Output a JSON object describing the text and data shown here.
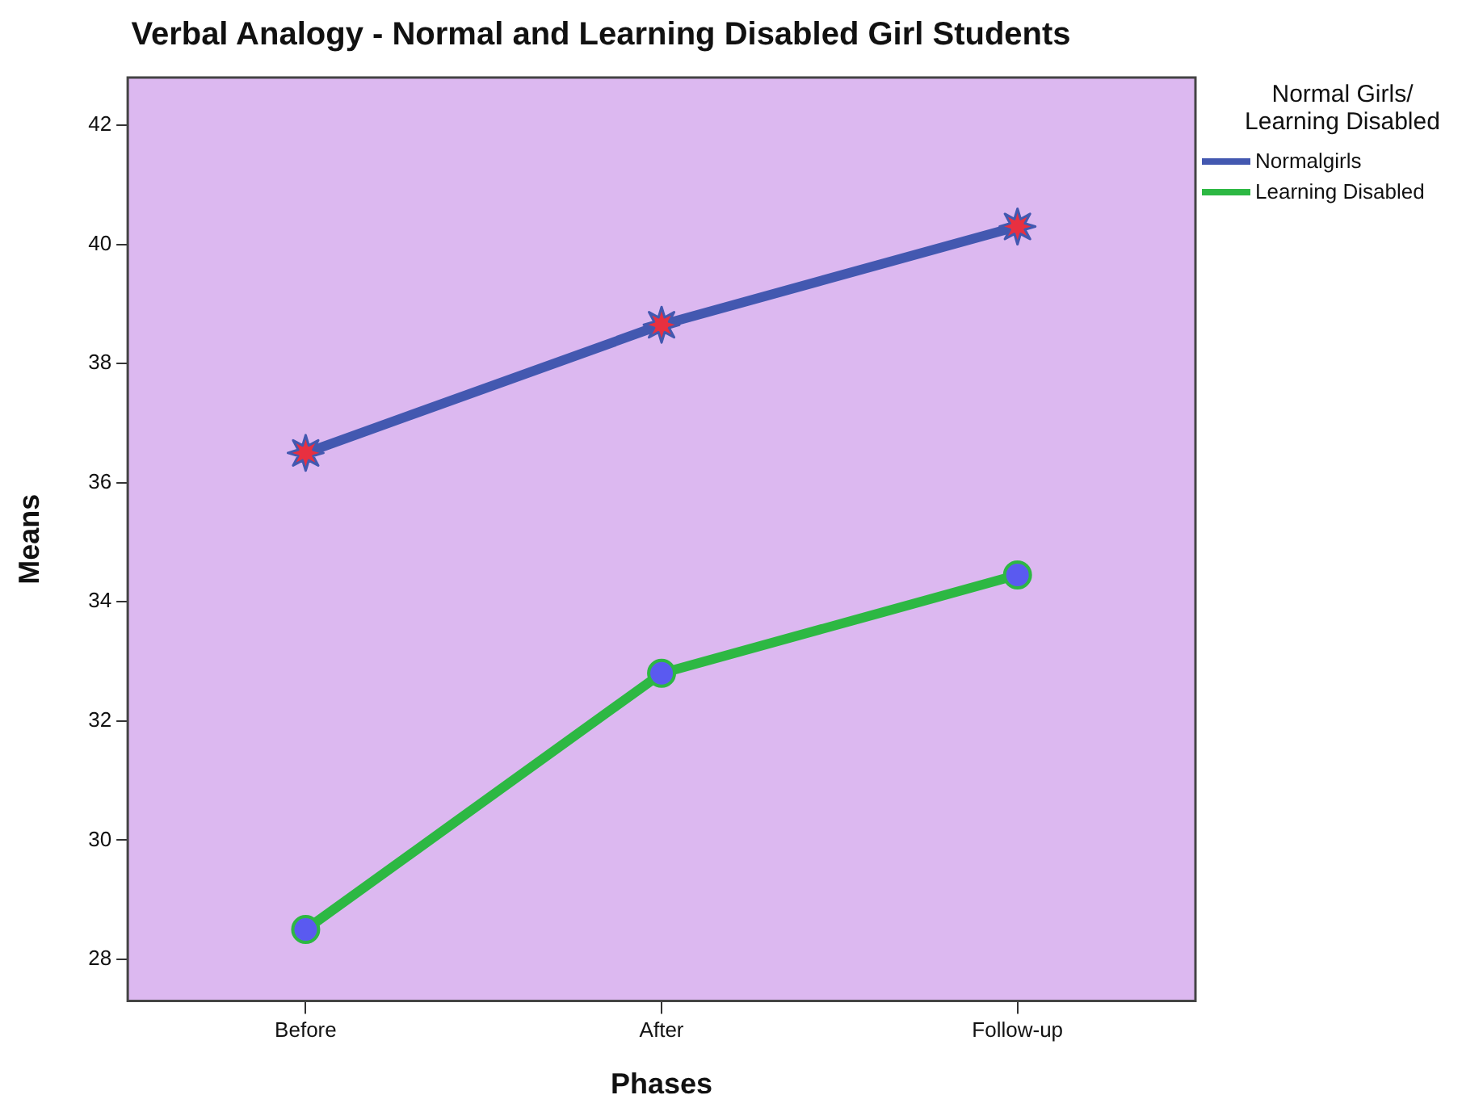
{
  "chart_data": {
    "type": "line",
    "title": "Verbal Analogy - Normal and Learning Disabled Girl Students",
    "xlabel": "Phases",
    "ylabel": "Means",
    "legend_title": "Normal Girls/ Learning Disabled",
    "categories": [
      "Before",
      "After",
      "Follow-up"
    ],
    "series": [
      {
        "name": "Normalgirls",
        "color": "#4358b0",
        "values": [
          36.5,
          38.65,
          40.3
        ],
        "marker": "star"
      },
      {
        "name": "Learning Disabled",
        "color": "#2db843",
        "values": [
          28.5,
          32.8,
          34.45
        ],
        "marker": "circle"
      }
    ],
    "ylim": [
      27.3,
      42.8
    ],
    "yticks": [
      28,
      30,
      32,
      34,
      36,
      38,
      40,
      42
    ],
    "legend": "top right"
  }
}
